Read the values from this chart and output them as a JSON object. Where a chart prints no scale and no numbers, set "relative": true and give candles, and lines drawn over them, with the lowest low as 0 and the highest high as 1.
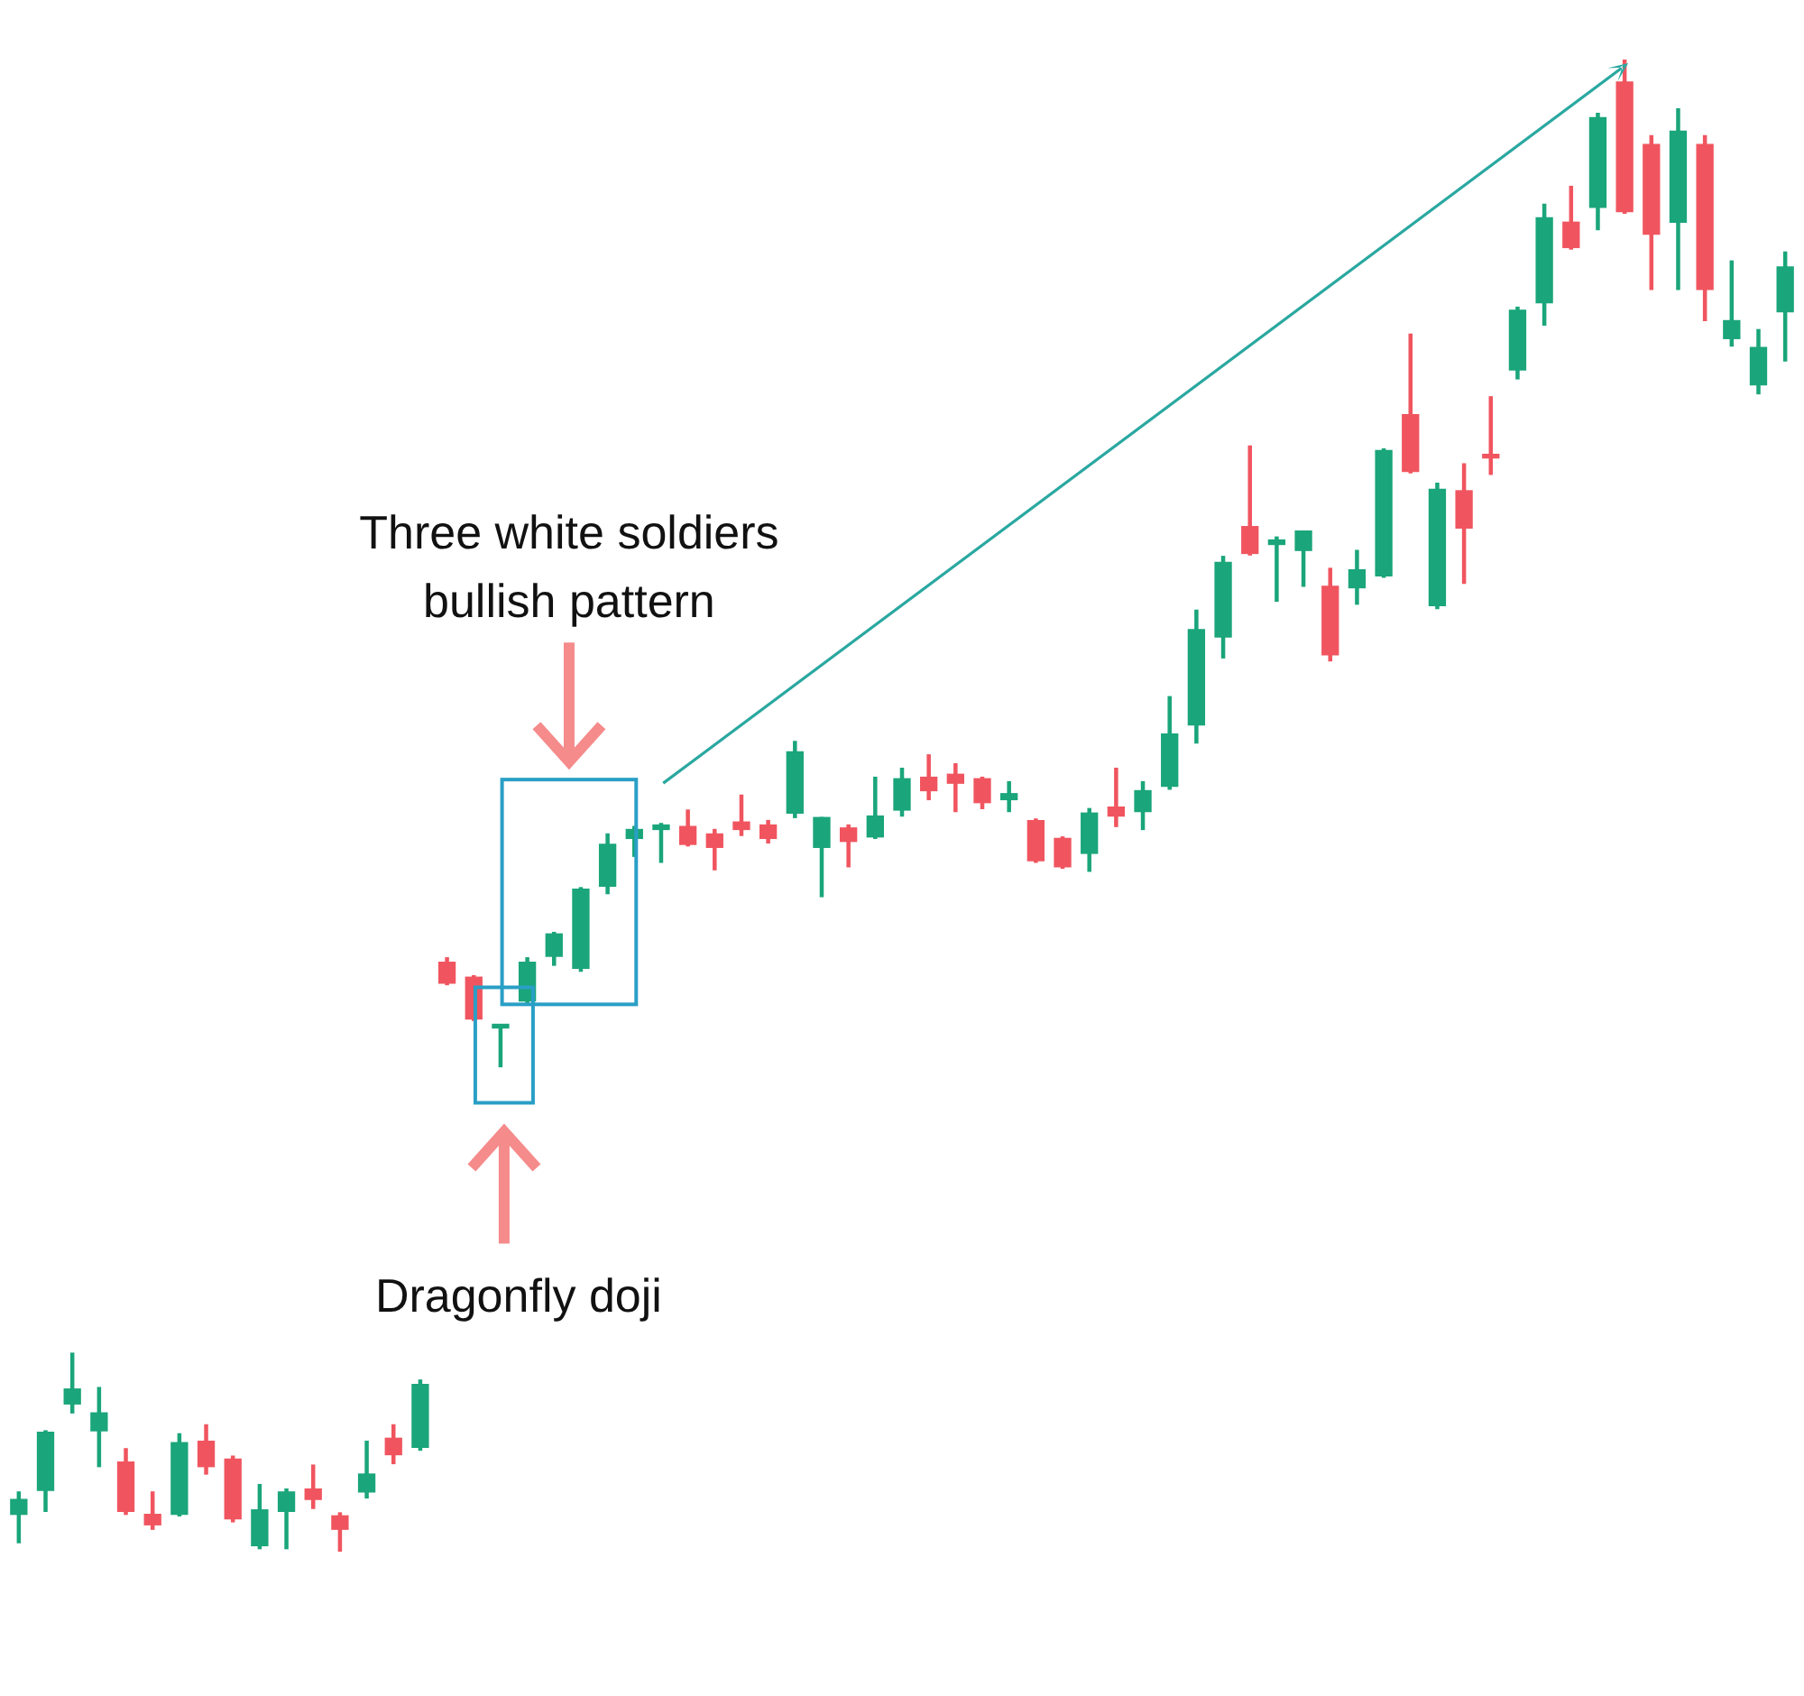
{
  "chart_data": {
    "type": "candlestick",
    "relative": true,
    "categories": [
      null,
      null,
      null,
      null,
      null,
      null,
      null,
      null,
      null,
      null,
      null,
      null,
      null,
      null,
      null,
      null,
      null,
      null,
      null,
      null,
      null,
      null,
      null,
      null,
      null,
      null,
      null,
      null,
      null,
      null,
      null,
      null,
      null,
      null,
      null,
      null,
      null,
      null,
      null,
      null,
      null,
      null,
      null,
      null,
      null,
      null,
      null,
      null,
      null,
      null,
      null,
      null,
      null,
      null,
      null,
      null,
      null,
      null,
      null,
      null,
      null,
      null,
      null,
      null,
      null,
      null,
      null
    ],
    "ohlc": [
      [
        0.025,
        0.04,
        0.006,
        0.035
      ],
      [
        0.041,
        0.081,
        0.027,
        0.08
      ],
      [
        0.099,
        0.133,
        0.093,
        0.109
      ],
      [
        0.081,
        0.11,
        0.057,
        0.093
      ],
      [
        0.06,
        0.069,
        0.025,
        0.027
      ],
      [
        0.025,
        0.04,
        0.015,
        0.018
      ],
      [
        0.025,
        0.079,
        0.024,
        0.073
      ],
      [
        0.074,
        0.085,
        0.052,
        0.057
      ],
      [
        0.062,
        0.064,
        0.02,
        0.022
      ],
      [
        0.004,
        0.045,
        0.002,
        0.028
      ],
      [
        0.027,
        0.042,
        0.002,
        0.04
      ],
      [
        0.042,
        0.058,
        0.029,
        0.035
      ],
      [
        0.024,
        0.026,
        0,
        0.015
      ],
      [
        0.04,
        0.074,
        0.036,
        0.052
      ],
      [
        0.076,
        0.085,
        0.059,
        0.065
      ],
      [
        0.07,
        0.115,
        0.068,
        0.112
      ],
      [
        0.395,
        0.398,
        0.38,
        0.381
      ],
      [
        0.385,
        0.386,
        0.356,
        0.357
      ],
      [
        0.351,
        0.353,
        0.325,
        0.352
      ],
      [
        0.369,
        0.398,
        0.368,
        0.395
      ],
      [
        0.399,
        0.415,
        0.393,
        0.414
      ],
      [
        0.391,
        0.445,
        0.389,
        0.444
      ],
      [
        0.446,
        0.481,
        0.441,
        0.474
      ],
      [
        0.478,
        0.486,
        0.466,
        0.484
      ],
      [
        0.484,
        0.488,
        0.462,
        0.487
      ],
      [
        0.486,
        0.497,
        0.473,
        0.474
      ],
      [
        0.481,
        0.484,
        0.457,
        0.472
      ],
      [
        0.489,
        0.507,
        0.48,
        0.484
      ],
      [
        0.487,
        0.49,
        0.475,
        0.478
      ],
      [
        0.495,
        0.543,
        0.492,
        0.536
      ],
      [
        0.472,
        0.492,
        0.439,
        0.492
      ],
      [
        0.485,
        0.487,
        0.459,
        0.476
      ],
      [
        0.479,
        0.519,
        0.478,
        0.493
      ],
      [
        0.497,
        0.525,
        0.493,
        0.518
      ],
      [
        0.519,
        0.534,
        0.504,
        0.51
      ],
      [
        0.521,
        0.528,
        0.496,
        0.515
      ],
      [
        0.518,
        0.519,
        0.498,
        0.502
      ],
      [
        0.504,
        0.516,
        0.496,
        0.508
      ],
      [
        0.49,
        0.491,
        0.462,
        0.463
      ],
      [
        0.478,
        0.479,
        0.458,
        0.459
      ],
      [
        0.468,
        0.498,
        0.456,
        0.495
      ],
      [
        0.499,
        0.525,
        0.486,
        0.493
      ],
      [
        0.496,
        0.516,
        0.484,
        0.51
      ],
      [
        0.513,
        0.573,
        0.511,
        0.548
      ],
      [
        0.554,
        0.631,
        0.542,
        0.618
      ],
      [
        0.613,
        0.667,
        0.599,
        0.663
      ],
      [
        0.687,
        0.741,
        0.668,
        0.669
      ],
      [
        0.675,
        0.68,
        0.637,
        0.678
      ],
      [
        0.671,
        0.684,
        0.647,
        0.684
      ],
      [
        0.647,
        0.659,
        0.597,
        0.601
      ],
      [
        0.646,
        0.671,
        0.635,
        0.658
      ],
      [
        0.654,
        0.739,
        0.653,
        0.738
      ],
      [
        0.762,
        0.816,
        0.723,
        0.724
      ],
      [
        0.634,
        0.716,
        0.632,
        0.712
      ],
      [
        0.711,
        0.729,
        0.649,
        0.686
      ],
      [
        0.734,
        0.774,
        0.722,
        0.733
      ],
      [
        0.792,
        0.834,
        0.786,
        0.832
      ],
      [
        0.837,
        0.903,
        0.822,
        0.894
      ],
      [
        0.891,
        0.915,
        0.873,
        0.874
      ],
      [
        0.901,
        0.964,
        0.886,
        0.961
      ],
      [
        0.985,
        1,
        0.897,
        0.898
      ],
      [
        0.943,
        0.949,
        0.846,
        0.883
      ],
      [
        0.891,
        0.967,
        0.846,
        0.952
      ],
      [
        0.943,
        0.949,
        0.825,
        0.846
      ],
      [
        0.813,
        0.865,
        0.808,
        0.825
      ],
      [
        0.782,
        0.819,
        0.776,
        0.807
      ],
      [
        0.831,
        0.871,
        0.798,
        0.861
      ]
    ],
    "colors": [
      "#1aa57a",
      "#1aa57a",
      "#1aa57a",
      "#1aa57a",
      "#f0555f",
      "#f0555f",
      "#1aa57a",
      "#f0555f",
      "#f0555f",
      "#1aa57a",
      "#1aa57a",
      "#f0555f",
      "#f0555f",
      "#1aa57a",
      "#f0555f",
      "#1aa57a",
      "#f0555f",
      "#f0555f",
      "#1aa57a",
      "#1aa57a",
      "#1aa57a",
      "#1aa57a",
      "#1aa57a",
      "#1aa57a",
      "#1aa57a",
      "#f0555f",
      "#f0555f",
      "#f0555f",
      "#f0555f",
      "#1aa57a",
      "#1aa57a",
      "#f0555f",
      "#1aa57a",
      "#1aa57a",
      "#f0555f",
      "#f0555f",
      "#f0555f",
      "#1aa57a",
      "#f0555f",
      "#f0555f",
      "#1aa57a",
      "#f0555f",
      "#1aa57a",
      "#1aa57a",
      "#1aa57a",
      "#1aa57a",
      "#f0555f",
      "#1aa57a",
      "#1aa57a",
      "#f0555f",
      "#1aa57a",
      "#1aa57a",
      "#f0555f",
      "#1aa57a",
      "#f0555f",
      "#f0555f",
      "#1aa57a",
      "#1aa57a",
      "#f0555f",
      "#1aa57a",
      "#f0555f",
      "#f0555f",
      "#1aa57a",
      "#f0555f",
      "#1aa57a",
      "#1aa57a",
      "#1aa57a"
    ],
    "annotations": [
      "Three white soldiers bullish pattern",
      "Dragonfly doji"
    ]
  }
}
